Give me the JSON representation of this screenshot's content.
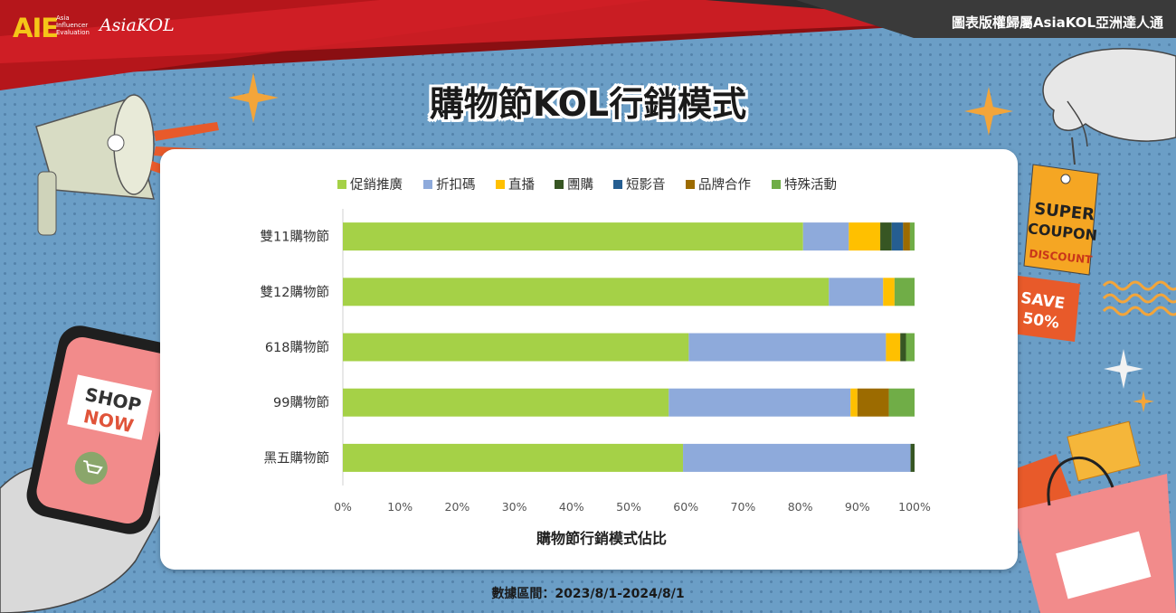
{
  "header": {
    "logo_text": "AIE",
    "logo_subtitle": [
      "Asia",
      "Influencer",
      "Evaluation"
    ],
    "brand_script": "AsiaKOL",
    "copyright": "圖表版權歸屬AsiaKOL亞洲達人通"
  },
  "title": "購物節KOL行銷模式",
  "footer": {
    "date_range": "數據區間：2023/8/1-2024/8/1"
  },
  "decorations": {
    "coupon_line1": "SUPER",
    "coupon_line2": "COUPON",
    "coupon_line3": "DISCOUNT",
    "save_line1": "SAVE",
    "save_line2": "50%",
    "phone_line1": "SHOP",
    "phone_line2": "NOW"
  },
  "chart_data": {
    "type": "bar",
    "orientation": "horizontal",
    "stacked": "percent",
    "categories": [
      "雙11購物節",
      "雙12購物節",
      "618購物節",
      "99購物節",
      "黑五購物節"
    ],
    "series": [
      {
        "name": "促銷推廣",
        "color": "#a5d147",
        "values": [
          80.5,
          85,
          60.5,
          57,
          59.5
        ]
      },
      {
        "name": "折扣碼",
        "color": "#8eaadb",
        "values": [
          8,
          9.5,
          34.5,
          31.8,
          39.8
        ]
      },
      {
        "name": "直播",
        "color": "#ffc000",
        "values": [
          5.5,
          2,
          2.5,
          1.2,
          0
        ]
      },
      {
        "name": "團購",
        "color": "#375623",
        "values": [
          2,
          0,
          1,
          0,
          0.7
        ]
      },
      {
        "name": "短影音",
        "color": "#255e91",
        "values": [
          2,
          0,
          0,
          0,
          0
        ]
      },
      {
        "name": "品牌合作",
        "color": "#9c6b00",
        "values": [
          1.2,
          0,
          0,
          5.5,
          0
        ]
      },
      {
        "name": "特殊活動",
        "color": "#70ad47",
        "values": [
          0.8,
          3.5,
          1.5,
          4.5,
          0
        ]
      }
    ],
    "xlabel": "購物節行銷模式佔比",
    "ylabel": "",
    "xlim": [
      0,
      100
    ],
    "xticks": [
      "0%",
      "10%",
      "20%",
      "30%",
      "40%",
      "50%",
      "60%",
      "70%",
      "80%",
      "90%",
      "100%"
    ],
    "legend_position": "top",
    "grid": false
  }
}
